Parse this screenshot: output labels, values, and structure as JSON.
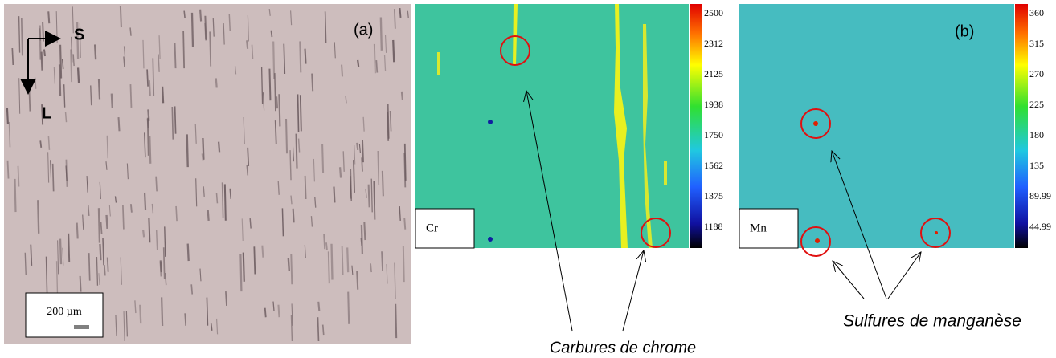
{
  "micrograph": {
    "axis_s": "S",
    "axis_l": "L",
    "label": "(a)",
    "scale_bar": "200 µm"
  },
  "cr_map": {
    "element": "Cr",
    "colorbar": [
      "2500",
      "2312",
      "2125",
      "1938",
      "1750",
      "1562",
      "1375",
      "1188"
    ]
  },
  "mn_map": {
    "label": "(b)",
    "element": "Mn",
    "colorbar": [
      "360",
      "315",
      "270",
      "225",
      "180",
      "135",
      "89.99",
      "44.99"
    ]
  },
  "annotations": {
    "carbides": "Carbures de chrome",
    "sulfides": "Sulfures de manganèse"
  }
}
